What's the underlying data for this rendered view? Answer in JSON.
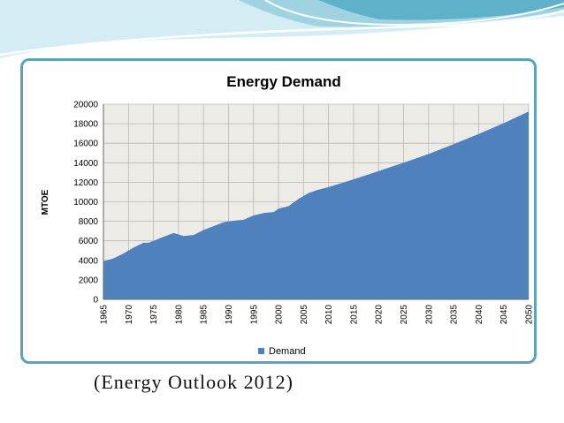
{
  "caption": "(Energy Outlook 2012)",
  "colors": {
    "area": "#4f81bd",
    "plot_bg": "#ecebe5",
    "frame": "#5aa3b8",
    "header_light": "#d4edf4",
    "header_mid": "#9fd3e2",
    "header_dark": "#5fb1c9"
  },
  "chart_data": {
    "type": "area",
    "title": "Energy Demand",
    "xlabel": "",
    "ylabel": "MTOE",
    "ylim": [
      0,
      20000
    ],
    "yticks": [
      0,
      2000,
      4000,
      6000,
      8000,
      10000,
      12000,
      14000,
      16000,
      18000,
      20000
    ],
    "xticks": [
      1965,
      1970,
      1975,
      1980,
      1985,
      1990,
      1995,
      2000,
      2005,
      2010,
      2015,
      2020,
      2025,
      2030,
      2035,
      2040,
      2045,
      2050
    ],
    "xlim": [
      1965,
      2050
    ],
    "grid": true,
    "legend_position": "bottom",
    "series": [
      {
        "name": "Demand",
        "x": [
          1965,
          1967,
          1969,
          1971,
          1973,
          1974,
          1975,
          1977,
          1979,
          1980,
          1981,
          1983,
          1985,
          1987,
          1989,
          1991,
          1993,
          1995,
          1997,
          1999,
          2000,
          2002,
          2004,
          2006,
          2008,
          2010,
          2015,
          2020,
          2025,
          2030,
          2035,
          2040,
          2045,
          2050
        ],
        "values": [
          3900,
          4200,
          4700,
          5300,
          5800,
          5800,
          6000,
          6400,
          6800,
          6650,
          6500,
          6600,
          7100,
          7500,
          7900,
          8050,
          8150,
          8600,
          8850,
          8950,
          9300,
          9550,
          10300,
          10900,
          11250,
          11500,
          12300,
          13150,
          14000,
          14900,
          15900,
          16950,
          18050,
          19250
        ]
      }
    ]
  }
}
